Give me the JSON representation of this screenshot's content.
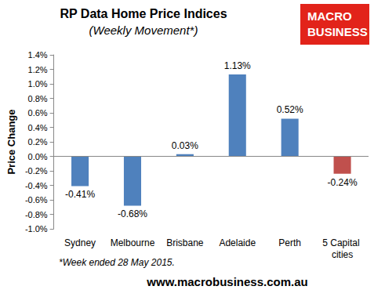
{
  "chart_data": {
    "type": "bar",
    "title": "RP Data Home Price Indices",
    "subtitle": "(Weekly Movement*)",
    "y_label": "Price Change",
    "categories": [
      "Sydney",
      "Melbourne",
      "Brisbane",
      "Adelaide",
      "Perth",
      "5 Capital cities"
    ],
    "values": [
      -0.41,
      -0.68,
      0.03,
      1.13,
      0.52,
      -0.24
    ],
    "value_labels": [
      "-0.41%",
      "-0.68%",
      "0.03%",
      "1.13%",
      "0.52%",
      "-0.24%"
    ],
    "colors": [
      "#4f81bd",
      "#4f81bd",
      "#4f81bd",
      "#4f81bd",
      "#4f81bd",
      "#c0504d"
    ],
    "ylim": [
      -1.0,
      1.4
    ],
    "yticks": [
      {
        "value": -1.0,
        "label": "-1.0%"
      },
      {
        "value": -0.8,
        "label": "-0.8%"
      },
      {
        "value": -0.6,
        "label": "-0.6%"
      },
      {
        "value": -0.4,
        "label": "-0.4%"
      },
      {
        "value": -0.2,
        "label": "-0.2%"
      },
      {
        "value": 0.0,
        "label": "0.0%"
      },
      {
        "value": 0.2,
        "label": "0.2%"
      },
      {
        "value": 0.4,
        "label": "0.4%"
      },
      {
        "value": 0.6,
        "label": "0.6%"
      },
      {
        "value": 0.8,
        "label": "0.8%"
      },
      {
        "value": 1.0,
        "label": "1.0%"
      },
      {
        "value": 1.2,
        "label": "1.2%"
      },
      {
        "value": 1.4,
        "label": "1.4%"
      }
    ],
    "grid": false,
    "data_labels": true,
    "logo": "MACRO BUSINESS",
    "note": "*Week ended 28 May 2015.",
    "source": "www.macrobusiness.com.au"
  }
}
